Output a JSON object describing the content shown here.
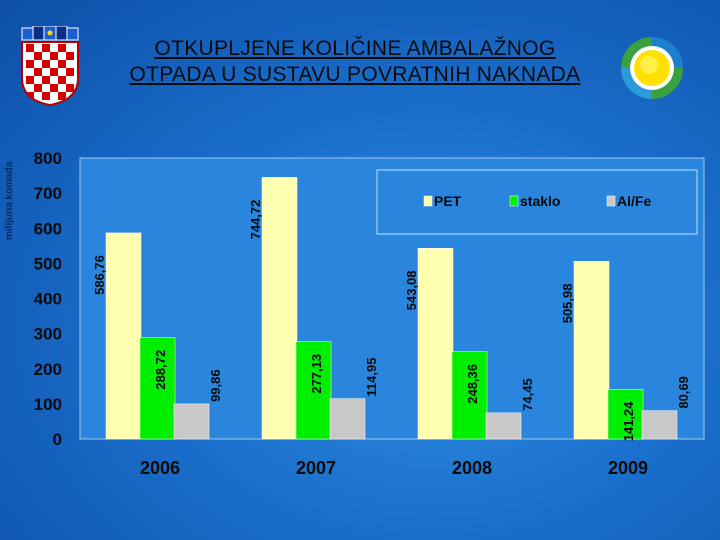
{
  "title_line1": "OTKUPLJENE KOLIČINE AMBALAŽNOG",
  "title_line2": "OTPADA U SUSTAVU POVRATNIH NAKNADA",
  "chart_data": {
    "type": "bar",
    "categories": [
      "2006",
      "2007",
      "2008",
      "2009"
    ],
    "series": [
      {
        "name": "PET",
        "values": [
          586.76,
          744.72,
          543.08,
          505.98
        ],
        "labels": [
          "586,76",
          "744,72",
          "543,08",
          "505,98"
        ],
        "color": "#ffffb0"
      },
      {
        "name": "staklo",
        "values": [
          288.72,
          277.13,
          248.36,
          141.24
        ],
        "labels": [
          "288,72",
          "277,13",
          "248,36",
          "141,24"
        ],
        "color": "#00ee00"
      },
      {
        "name": "Al/Fe",
        "values": [
          99.86,
          114.95,
          74.45,
          80.69
        ],
        "labels": [
          "99,86",
          "114,95",
          "74,45",
          "80,69"
        ],
        "color": "#c8c8c8"
      }
    ],
    "ylabel": "milijuna komada",
    "ylim": [
      0,
      800
    ],
    "yticks": [
      0,
      100,
      200,
      300,
      400,
      500,
      600,
      700,
      800
    ],
    "legend": "top-right",
    "grid": false
  }
}
